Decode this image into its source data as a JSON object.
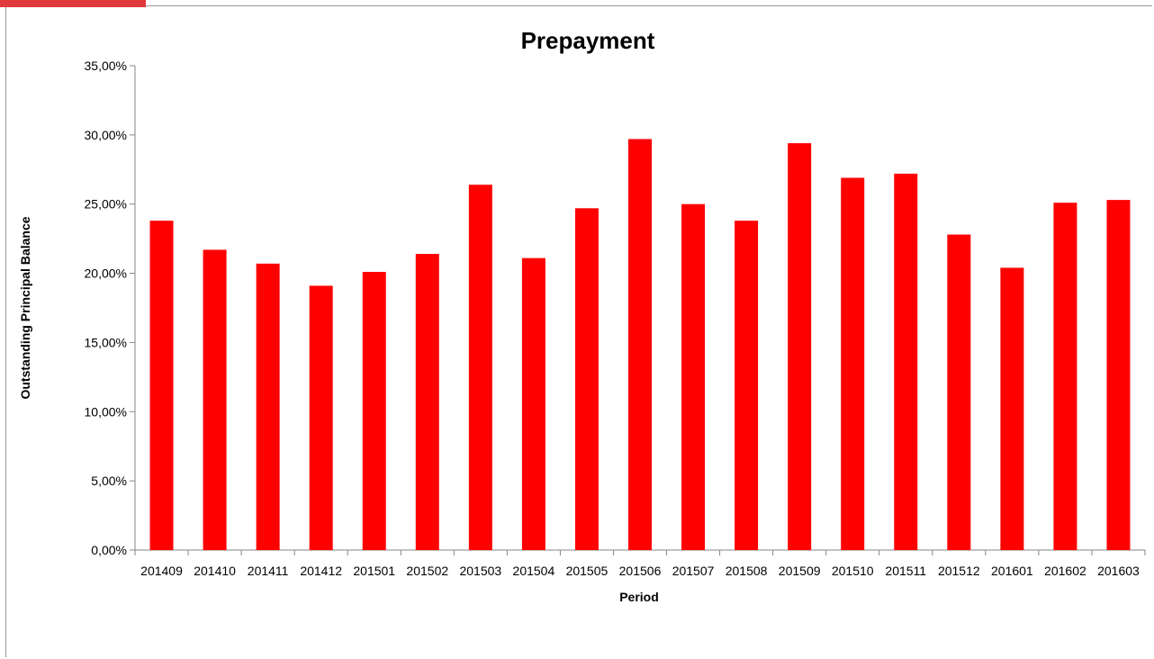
{
  "chart_data": {
    "type": "bar",
    "title": "Prepayment",
    "xlabel": "Period",
    "ylabel": "Outstanding Principal Balance",
    "categories": [
      "201409",
      "201410",
      "201411",
      "201412",
      "201501",
      "201502",
      "201503",
      "201504",
      "201505",
      "201506",
      "201507",
      "201508",
      "201509",
      "201510",
      "201511",
      "201512",
      "201601",
      "201602",
      "201603"
    ],
    "values": [
      23.8,
      21.7,
      20.7,
      19.1,
      20.1,
      21.4,
      26.4,
      21.1,
      24.7,
      29.7,
      25.0,
      23.8,
      29.4,
      26.9,
      27.2,
      22.8,
      20.4,
      25.1,
      25.3
    ],
    "ylim": [
      0,
      35
    ],
    "yticks": [
      0,
      5,
      10,
      15,
      20,
      25,
      30,
      35
    ],
    "ytick_labels": [
      "0,00%",
      "5,00%",
      "10,00%",
      "15,00%",
      "20,00%",
      "25,00%",
      "30,00%",
      "35,00%"
    ],
    "bar_color": "#ff0000",
    "grid": false,
    "legend": "none"
  },
  "accent_color": "#e03a3a"
}
